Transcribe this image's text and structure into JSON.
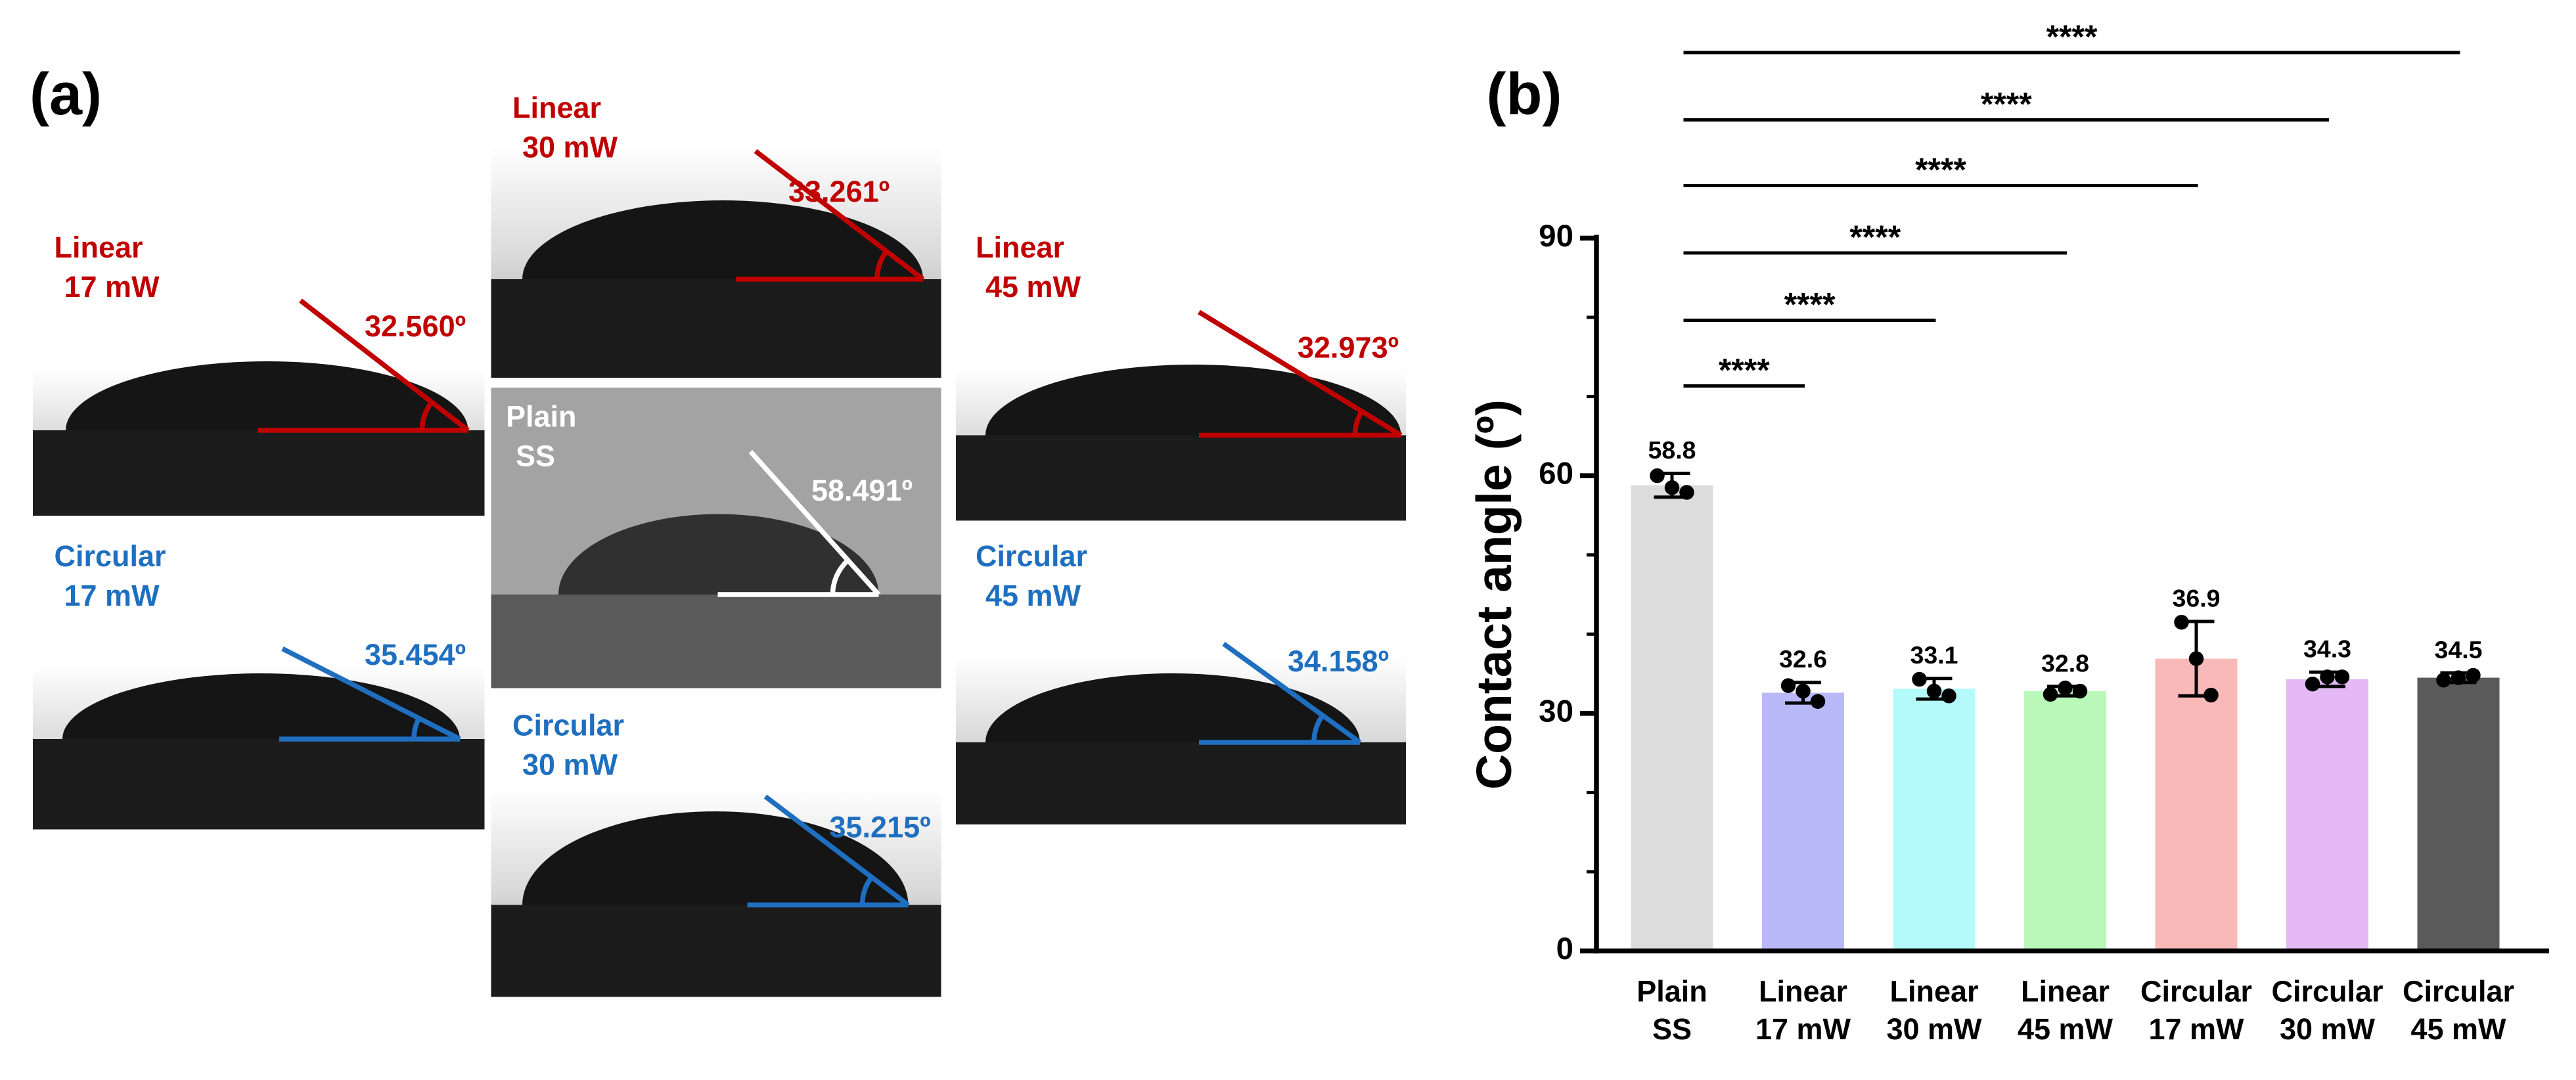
{
  "panel_a": {
    "label": "(a)",
    "images": [
      {
        "title": [
          "Linear",
          "17 mW"
        ],
        "angle": "32.560º",
        "color": "#c00000"
      },
      {
        "title": [
          "Linear",
          "30 mW"
        ],
        "angle": "33.261º",
        "color": "#c00000"
      },
      {
        "title": [
          "Linear",
          "45 mW"
        ],
        "angle": "32.973º",
        "color": "#c00000"
      },
      {
        "title": [
          "Plain",
          "SS"
        ],
        "angle": "58.491º",
        "color": "#ffffff"
      },
      {
        "title": [
          "Circular",
          "17 mW"
        ],
        "angle": "35.454º",
        "color": "#1f6fc0"
      },
      {
        "title": [
          "Circular",
          "30 mW"
        ],
        "angle": "35.215º",
        "color": "#1f6fc0"
      },
      {
        "title": [
          "Circular",
          "45 mW"
        ],
        "angle": "34.158º",
        "color": "#1f6fc0"
      }
    ]
  },
  "chart_data": {
    "type": "bar",
    "label": "(b)",
    "ylabel": "Contact angle (º)",
    "categories": [
      [
        "Plain",
        "SS"
      ],
      [
        "Linear",
        "17 mW"
      ],
      [
        "Linear",
        "30 mW"
      ],
      [
        "Linear",
        "45 mW"
      ],
      [
        "Circular",
        "17 mW"
      ],
      [
        "Circular",
        "30 mW"
      ],
      [
        "Circular",
        "45 mW"
      ]
    ],
    "values": [
      58.8,
      32.6,
      33.1,
      32.8,
      36.9,
      34.3,
      34.5
    ],
    "errors": [
      1.5,
      1.3,
      1.3,
      0.6,
      4.7,
      0.9,
      0.6
    ],
    "points": [
      [
        60.0,
        57.9,
        58.5
      ],
      [
        33.5,
        31.5,
        32.8
      ],
      [
        34.3,
        32.2,
        32.8
      ],
      [
        32.4,
        32.8,
        33.2
      ],
      [
        41.5,
        32.3,
        36.9
      ],
      [
        33.7,
        34.6,
        34.6
      ],
      [
        34.2,
        34.8,
        34.5
      ]
    ],
    "colors": [
      "#dcdcdc",
      "#b9b9fa",
      "#b4fafa",
      "#b9f8b9",
      "#f9b9b9",
      "#e4b9f5",
      "#5a5a5a"
    ],
    "ylim": [
      0,
      90
    ],
    "yticks": [
      0,
      30,
      60,
      90
    ],
    "minor_yticks": [
      10,
      20,
      40,
      50,
      70,
      80
    ],
    "significance": [
      {
        "groups": [
          0,
          1
        ],
        "label": "****"
      },
      {
        "groups": [
          0,
          2
        ],
        "label": "****"
      },
      {
        "groups": [
          0,
          3
        ],
        "label": "****"
      },
      {
        "groups": [
          0,
          4
        ],
        "label": "****"
      },
      {
        "groups": [
          0,
          5
        ],
        "label": "****"
      },
      {
        "groups": [
          0,
          6
        ],
        "label": "****"
      }
    ]
  }
}
